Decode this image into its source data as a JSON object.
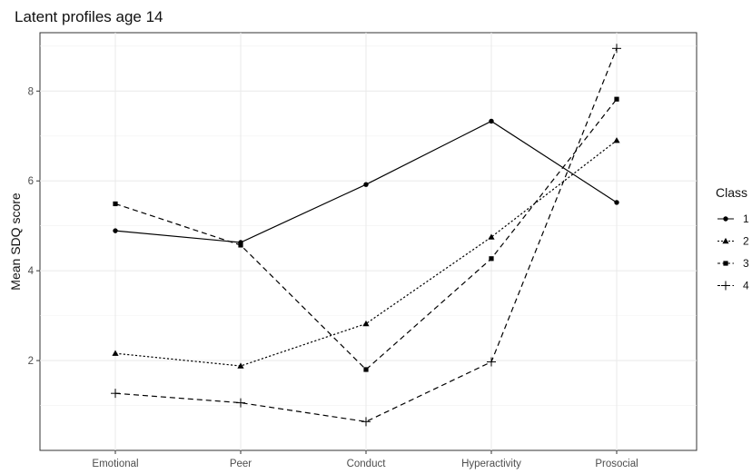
{
  "chart_data": {
    "type": "line",
    "title": "Latent profiles age 14",
    "xlabel": "",
    "ylabel": "Mean SDQ score",
    "categories": [
      "Emotional",
      "Peer",
      "Conduct",
      "Hyperactivity",
      "Prosocial"
    ],
    "ylim": [
      0.0,
      9.3
    ],
    "yticks": [
      2,
      4,
      6,
      8
    ],
    "grid": true,
    "legend": {
      "title": "Class",
      "placement": "right"
    },
    "series": [
      {
        "name": "1",
        "marker": "circle",
        "dash": "solid",
        "values": [
          4.89,
          4.63,
          5.92,
          7.33,
          5.52
        ]
      },
      {
        "name": "2",
        "marker": "triangle",
        "dash": "dotted",
        "values": [
          2.16,
          1.88,
          2.82,
          4.75,
          6.9
        ]
      },
      {
        "name": "3",
        "marker": "square",
        "dash": "dashed",
        "values": [
          5.49,
          4.57,
          1.8,
          4.27,
          7.82
        ]
      },
      {
        "name": "4",
        "marker": "plus",
        "dash": "dashed",
        "values": [
          1.27,
          1.06,
          0.64,
          1.97,
          8.95
        ]
      }
    ]
  }
}
